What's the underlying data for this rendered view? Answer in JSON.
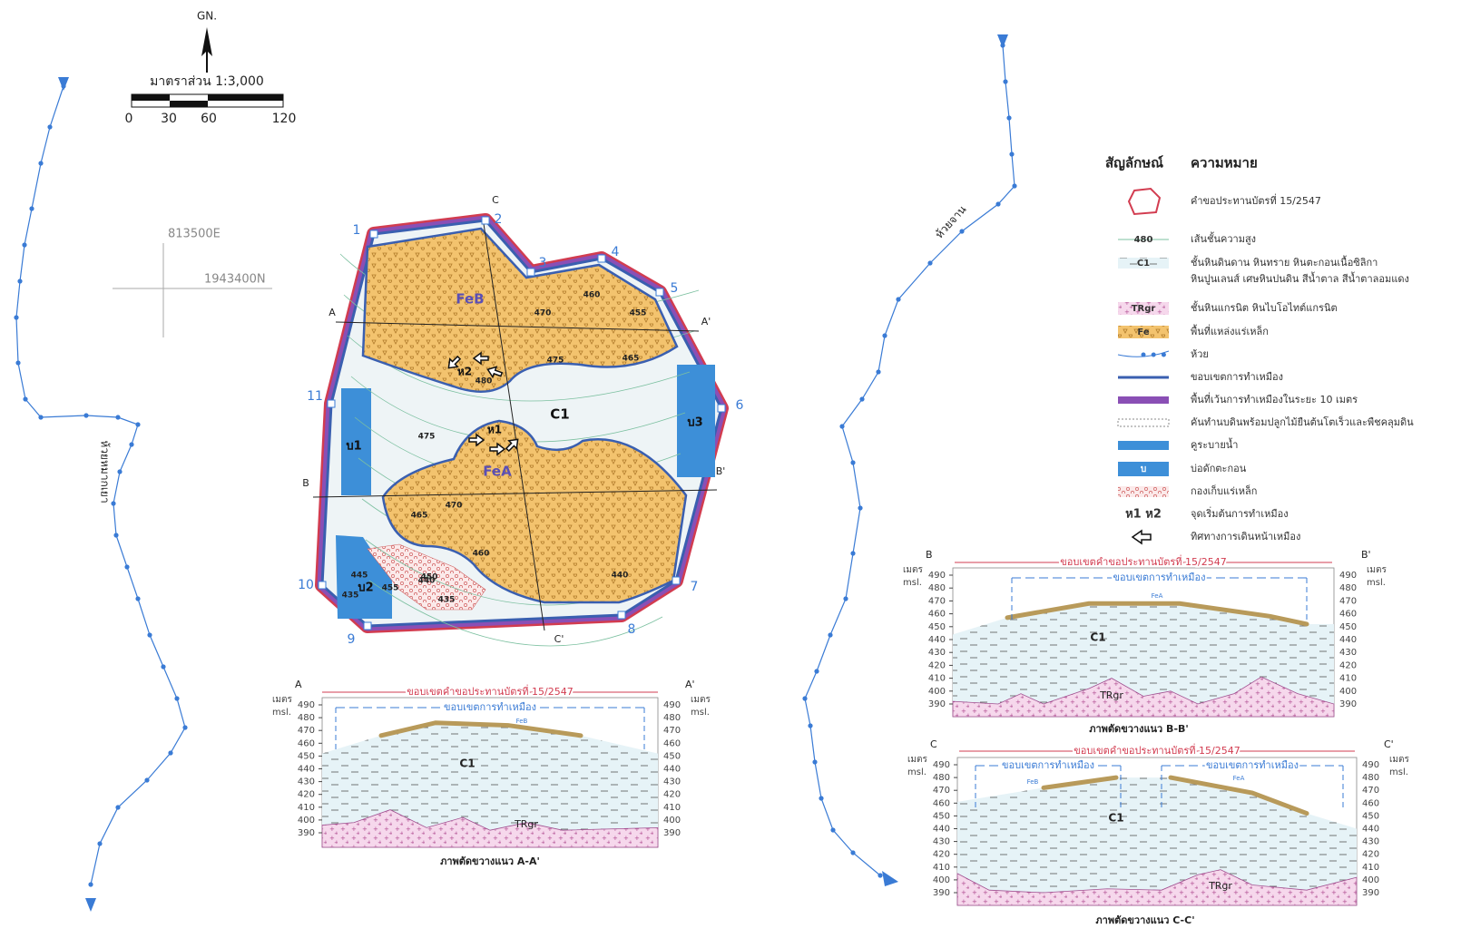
{
  "north": "GN.",
  "scale": {
    "title": "มาตราส่วน 1:3,000",
    "ticks": [
      "0",
      "30",
      "60",
      "120"
    ]
  },
  "grid": {
    "easting": "813500E",
    "northing": "1943400N"
  },
  "streams": [
    "ห้วยหมากเยา",
    "ห้วยจาน"
  ],
  "map": {
    "corners": [
      "1",
      "2",
      "3",
      "4",
      "5",
      "6",
      "7",
      "8",
      "9",
      "10",
      "11"
    ],
    "zones": [
      "FeB",
      "FeA",
      "C1",
      "บ1",
      "บ2",
      "บ3",
      "ห1",
      "ห2"
    ],
    "contours": [
      "470",
      "460",
      "455",
      "475",
      "465",
      "480",
      "475",
      "470",
      "465",
      "460",
      "440",
      "445",
      "455",
      "450",
      "435",
      "440",
      "435"
    ],
    "section_ends": [
      "A",
      "A'",
      "B",
      "B'",
      "C",
      "C'"
    ]
  },
  "legend": {
    "header": [
      "สัญลักษณ์",
      "ความหมาย"
    ],
    "items": [
      {
        "label": "คำขอประทานบัตรที่ 15/2547"
      },
      {
        "symbol": "480",
        "label": "เส้นชั้นความสูง"
      },
      {
        "symbol": "C1",
        "label": "ชั้นหินดินดาน หินทราย หินตะกอนเนื้อซิลิกา",
        "label2": "หินปูนเลนส์ เศษหินปนดิน สีน้ำตาล สีน้ำตาลอมแดง"
      },
      {
        "symbol": "TRgr",
        "label": "ชั้นหินแกรนิต หินไบโอไทต์แกรนิต"
      },
      {
        "symbol": "Fe",
        "label": "พื้นที่แหล่งแร่เหล็ก"
      },
      {
        "label": "ห้วย"
      },
      {
        "label": "ขอบเขตการทำเหมือง"
      },
      {
        "label": "พื้นที่เว้นการทำเหมืองในระยะ 10 เมตร"
      },
      {
        "label": "คันทำนบดินพร้อมปลูกไม้ยืนต้นโตเร็วและพืชคลุมดิน"
      },
      {
        "label": "คูระบายน้ำ"
      },
      {
        "symbol": "บ",
        "label": "บ่อดักตะกอน"
      },
      {
        "label": "กองเก็บแร่เหล็ก"
      },
      {
        "symbol": "ห1  ห2",
        "label": "จุดเริ่มต้นการทำเหมือง"
      },
      {
        "label": "ทิศทางการเดินหน้าเหมือง"
      }
    ]
  },
  "sections": [
    {
      "title": "ภาพตัดขวางแนว A-A'",
      "ends": [
        "A",
        "A'"
      ],
      "unit": [
        "เมตร",
        "msl."
      ],
      "yticks": [
        "390",
        "400",
        "410",
        "420",
        "430",
        "440",
        "450",
        "460",
        "470",
        "480",
        "490"
      ],
      "lease": "ขอบเขตคำขอประทานบัตรที่ 15/2547",
      "mine": [
        "ขอบเขตการทำเหมือง"
      ],
      "ore": [
        "FeB"
      ],
      "rock": [
        "C1",
        "TRgr"
      ]
    },
    {
      "title": "ภาพตัดขวางแนว B-B'",
      "ends": [
        "B",
        "B'"
      ],
      "unit": [
        "เมตร",
        "msl."
      ],
      "yticks": [
        "390",
        "400",
        "410",
        "420",
        "430",
        "440",
        "450",
        "460",
        "470",
        "480",
        "490"
      ],
      "lease": "ขอบเขตคำขอประทานบัตรที่ 15/2547",
      "mine": [
        "ขอบเขตการทำเหมือง"
      ],
      "ore": [
        "FeA"
      ],
      "rock": [
        "C1",
        "TRgr"
      ]
    },
    {
      "title": "ภาพตัดขวางแนว C-C'",
      "ends": [
        "C",
        "C'"
      ],
      "unit": [
        "เมตร",
        "msl."
      ],
      "yticks": [
        "390",
        "400",
        "410",
        "420",
        "430",
        "440",
        "450",
        "460",
        "470",
        "480",
        "490"
      ],
      "lease": "ขอบเขตคำขอประทานบัตรที่ 15/2547",
      "mine": [
        "ขอบเขตการทำเหมือง",
        "ขอบเขตการทำเหมือง"
      ],
      "ore": [
        "FeB",
        "FeA"
      ],
      "rock": [
        "C1",
        "TRgr"
      ]
    }
  ]
}
